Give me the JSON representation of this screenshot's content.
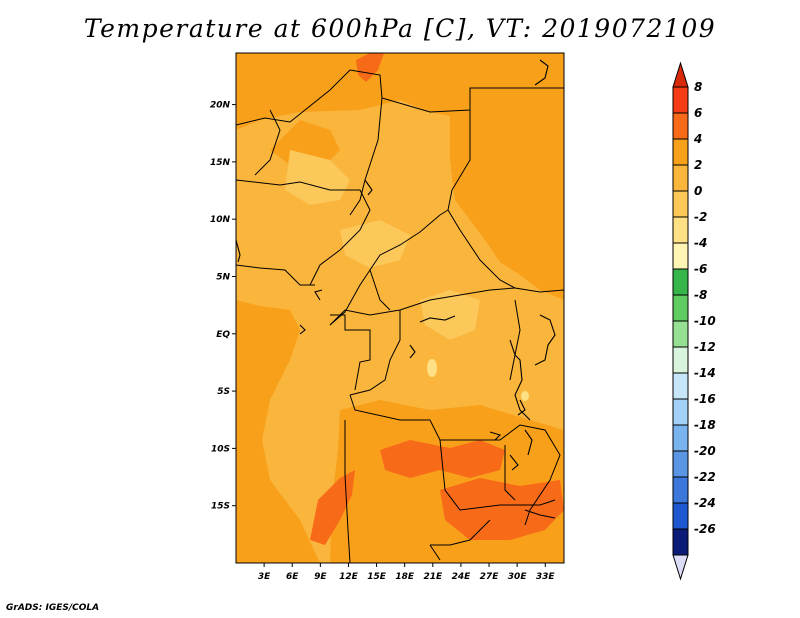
{
  "map": {
    "title": "Temperature at 600hPa [C], VT: 2019072109",
    "credit": "GrADS: IGES/COLA",
    "variable": "Temperature at 600hPa",
    "units": "C",
    "valid_time": "2019072109",
    "extent": {
      "lon_min": 0,
      "lon_max": 35,
      "lat_min": -20,
      "lat_max": 24.5
    },
    "lon_ticks": [
      {
        "value": 3,
        "label": "3E"
      },
      {
        "value": 6,
        "label": "6E"
      },
      {
        "value": 9,
        "label": "9E"
      },
      {
        "value": 12,
        "label": "12E"
      },
      {
        "value": 15,
        "label": "15E"
      },
      {
        "value": 18,
        "label": "18E"
      },
      {
        "value": 21,
        "label": "21E"
      },
      {
        "value": 24,
        "label": "24E"
      },
      {
        "value": 27,
        "label": "27E"
      },
      {
        "value": 30,
        "label": "30E"
      },
      {
        "value": 33,
        "label": "33E"
      }
    ],
    "lat_ticks": [
      {
        "value": 20,
        "label": "20N"
      },
      {
        "value": 15,
        "label": "15N"
      },
      {
        "value": 10,
        "label": "10N"
      },
      {
        "value": 5,
        "label": "5N"
      },
      {
        "value": 0,
        "label": "EQ"
      },
      {
        "value": -5,
        "label": "5S"
      },
      {
        "value": -10,
        "label": "10S"
      },
      {
        "value": -15,
        "label": "15S"
      }
    ]
  },
  "colorbar": {
    "levels": [
      {
        "label": "8",
        "color": "#f53c14"
      },
      {
        "label": "6",
        "color": "#f76a18"
      },
      {
        "label": "4",
        "color": "#f8a01a"
      },
      {
        "label": "2",
        "color": "#fab53c"
      },
      {
        "label": "0",
        "color": "#fcc85a"
      },
      {
        "label": "-2",
        "color": "#fde184"
      },
      {
        "label": "-4",
        "color": "#fff5b4"
      },
      {
        "label": "-6",
        "color": "#36b64a"
      },
      {
        "label": "-8",
        "color": "#5ecc60"
      },
      {
        "label": "-10",
        "color": "#96e094"
      },
      {
        "label": "-12",
        "color": "#d8f4dc"
      },
      {
        "label": "-14",
        "color": "#c8e6fa"
      },
      {
        "label": "-16",
        "color": "#a2d0f6"
      },
      {
        "label": "-18",
        "color": "#7ab4ee"
      },
      {
        "label": "-20",
        "color": "#5a96e4"
      },
      {
        "label": "-22",
        "color": "#3c78dc"
      },
      {
        "label": "-24",
        "color": "#1e58d0"
      },
      {
        "label": "-26",
        "color": "#1040b4"
      }
    ],
    "top_triangle_color": "#d82a0a",
    "bottom_triangle_color": "#dcdcf6",
    "extra_band_color": "#0a1c78"
  },
  "field_colors": {
    "base": "#fab53c",
    "warm": "#f8a01a",
    "hot": "#f76a18",
    "cool": "#fcc85a",
    "cold": "#fde184"
  }
}
